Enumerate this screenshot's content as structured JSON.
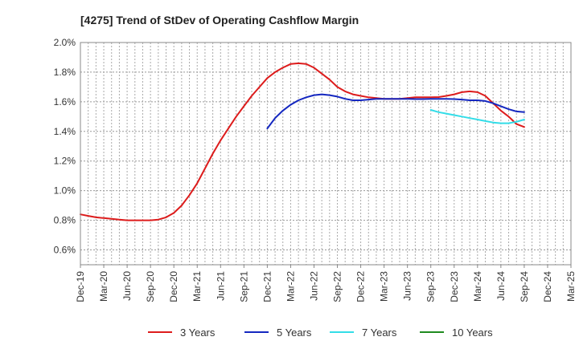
{
  "chart_data": {
    "type": "line",
    "title": "[4275]  Trend of StDev of Operating Cashflow Margin",
    "xlabel": "",
    "ylabel": "",
    "x_tick_labels": [
      "Dec-19",
      "Mar-20",
      "Jun-20",
      "Sep-20",
      "Dec-20",
      "Mar-21",
      "Jun-21",
      "Sep-21",
      "Dec-21",
      "Mar-22",
      "Jun-22",
      "Sep-22",
      "Dec-22",
      "Mar-23",
      "Jun-23",
      "Sep-23",
      "Dec-23",
      "Mar-24",
      "Jun-24",
      "Sep-24",
      "Dec-24",
      "Mar-25"
    ],
    "y_tick_labels": [
      "0.6%",
      "0.8%",
      "1.0%",
      "1.2%",
      "1.4%",
      "1.6%",
      "1.8%",
      "2.0%"
    ],
    "ylim": [
      0.5,
      2.0
    ],
    "grid": true,
    "legend_position": "bottom",
    "series": [
      {
        "name": "3 Years",
        "color": "#dd1c1c",
        "x": [
          "Dec-19",
          "Jan-20",
          "Feb-20",
          "Mar-20",
          "Apr-20",
          "May-20",
          "Jun-20",
          "Jul-20",
          "Aug-20",
          "Sep-20",
          "Oct-20",
          "Nov-20",
          "Dec-20",
          "Jan-21",
          "Feb-21",
          "Mar-21",
          "Apr-21",
          "May-21",
          "Jun-21",
          "Jul-21",
          "Aug-21",
          "Sep-21",
          "Oct-21",
          "Nov-21",
          "Dec-21",
          "Jan-22",
          "Feb-22",
          "Mar-22",
          "Apr-22",
          "May-22",
          "Jun-22",
          "Jul-22",
          "Aug-22",
          "Sep-22",
          "Oct-22",
          "Nov-22",
          "Dec-22",
          "Jan-23",
          "Feb-23",
          "Mar-23",
          "Apr-23",
          "May-23",
          "Jun-23",
          "Jul-23",
          "Aug-23",
          "Sep-23",
          "Oct-23",
          "Nov-23",
          "Dec-23",
          "Jan-24",
          "Feb-24",
          "Mar-24",
          "Apr-24",
          "May-24",
          "Jun-24",
          "Jul-24",
          "Aug-24",
          "Sep-24"
        ],
        "values": [
          0.84,
          0.83,
          0.82,
          0.815,
          0.81,
          0.805,
          0.8,
          0.8,
          0.8,
          0.8,
          0.805,
          0.82,
          0.85,
          0.9,
          0.97,
          1.05,
          1.15,
          1.25,
          1.34,
          1.42,
          1.5,
          1.57,
          1.64,
          1.7,
          1.76,
          1.8,
          1.83,
          1.855,
          1.86,
          1.855,
          1.83,
          1.79,
          1.75,
          1.7,
          1.67,
          1.65,
          1.64,
          1.63,
          1.625,
          1.62,
          1.62,
          1.62,
          1.625,
          1.63,
          1.63,
          1.63,
          1.632,
          1.64,
          1.65,
          1.665,
          1.67,
          1.665,
          1.64,
          1.59,
          1.54,
          1.5,
          1.45,
          1.43
        ]
      },
      {
        "name": "5 Years",
        "color": "#1427c0",
        "x": [
          "Dec-21",
          "Jan-22",
          "Feb-22",
          "Mar-22",
          "Apr-22",
          "May-22",
          "Jun-22",
          "Jul-22",
          "Aug-22",
          "Sep-22",
          "Oct-22",
          "Nov-22",
          "Dec-22",
          "Jan-23",
          "Feb-23",
          "Mar-23",
          "Apr-23",
          "May-23",
          "Jun-23",
          "Jul-23",
          "Aug-23",
          "Sep-23",
          "Oct-23",
          "Nov-23",
          "Dec-23",
          "Jan-24",
          "Feb-24",
          "Mar-24",
          "Apr-24",
          "May-24",
          "Jun-24",
          "Jul-24",
          "Aug-24",
          "Sep-24"
        ],
        "values": [
          1.42,
          1.49,
          1.54,
          1.58,
          1.61,
          1.63,
          1.645,
          1.65,
          1.645,
          1.635,
          1.62,
          1.61,
          1.61,
          1.615,
          1.62,
          1.62,
          1.62,
          1.62,
          1.62,
          1.618,
          1.618,
          1.62,
          1.62,
          1.62,
          1.618,
          1.615,
          1.61,
          1.61,
          1.605,
          1.59,
          1.57,
          1.55,
          1.535,
          1.53
        ]
      },
      {
        "name": "7 Years",
        "color": "#33dde8",
        "x": [
          "Sep-23",
          "Oct-23",
          "Nov-23",
          "Dec-23",
          "Jan-24",
          "Feb-24",
          "Mar-24",
          "Apr-24",
          "May-24",
          "Jun-24",
          "Jul-24",
          "Aug-24",
          "Sep-24"
        ],
        "values": [
          1.545,
          1.53,
          1.52,
          1.51,
          1.5,
          1.49,
          1.48,
          1.47,
          1.46,
          1.455,
          1.455,
          1.465,
          1.48
        ]
      },
      {
        "name": "10 Years",
        "color": "#1f8a1f",
        "x": [],
        "values": []
      }
    ]
  }
}
